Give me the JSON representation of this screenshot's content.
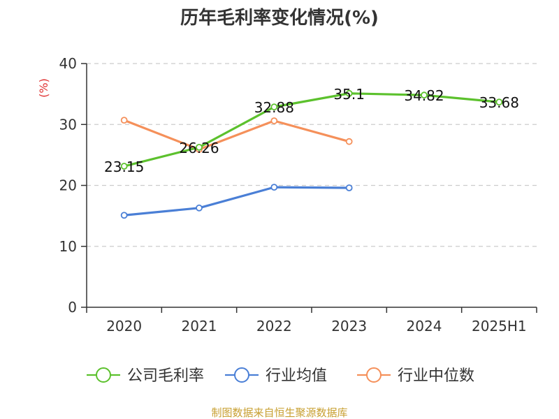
{
  "chart_data": {
    "type": "line",
    "title": "历年毛利率变化情况(%)",
    "ylabel": "(%)",
    "xlabel": "",
    "categories": [
      "2020",
      "2021",
      "2022",
      "2023",
      "2024",
      "2025H1"
    ],
    "ylim": [
      0,
      40
    ],
    "yticks": [
      0,
      10,
      20,
      30,
      40
    ],
    "grid": true,
    "legend_position": "bottom",
    "series": [
      {
        "name": "公司毛利率",
        "color": "#5cc12d",
        "values": [
          23.15,
          26.26,
          32.88,
          35.1,
          34.82,
          33.68
        ],
        "labels": [
          "23.15",
          "26.26",
          "32.88",
          "35.1",
          "34.82",
          "33.68"
        ]
      },
      {
        "name": "行业均值",
        "color": "#4a7fd6",
        "values": [
          15.1,
          16.3,
          19.7,
          19.6,
          null,
          null
        ]
      },
      {
        "name": "行业中位数",
        "color": "#f5905a",
        "values": [
          30.7,
          25.9,
          30.6,
          27.2,
          null,
          null
        ]
      }
    ]
  },
  "source": "制图数据来自恒生聚源数据库"
}
